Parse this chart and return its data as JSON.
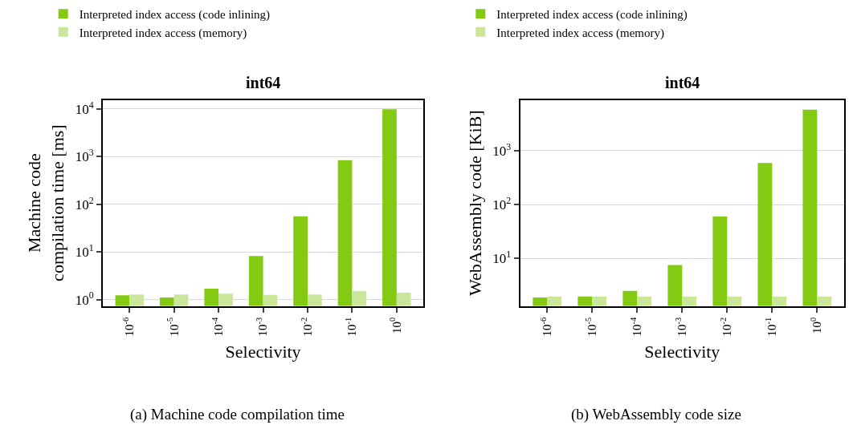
{
  "chart_data": [
    {
      "type": "bar",
      "title": "int64",
      "xlabel": "Selectivity",
      "ylabel": "Machine code compilation time [ms]",
      "categories": [
        "10$^{-6}$",
        "10$^{-5}$",
        "10$^{-4}$",
        "10$^{-3}$",
        "10$^{-2}$",
        "10$^{-1}$",
        "10$^{0}$"
      ],
      "series": [
        {
          "name": "Interpreted index access (code inlining)",
          "color": "#84c912",
          "values": [
            1.23,
            1.11,
            1.69,
            8.2,
            56,
            840,
            9800
          ]
        },
        {
          "name": "Interpreted index access (memory)",
          "color": "#c9e69a",
          "values": [
            1.28,
            1.28,
            1.33,
            1.25,
            1.28,
            1.52,
            1.39
          ]
        }
      ],
      "log": "y",
      "ylim": [
        0.73,
        15500
      ],
      "yticks": [
        {
          "value": 1,
          "label": "10$^{0}$"
        },
        {
          "value": 10,
          "label": "10$^{1}$"
        },
        {
          "value": 100,
          "label": "10$^{2}$"
        },
        {
          "value": 1000,
          "label": "10$^{3}$"
        },
        {
          "value": 10000,
          "label": "10$^{4}$"
        }
      ],
      "grid": "y",
      "legend": "top left",
      "annotations": [
        "(a) Machine code compilation time"
      ]
    },
    {
      "type": "bar",
      "title": "int64",
      "xlabel": "Selectivity",
      "ylabel": "WebAssembly code [KiB]",
      "categories": [
        "10$^{-6}$",
        "10$^{-5}$",
        "10$^{-4}$",
        "10$^{-3}$",
        "10$^{-2}$",
        "10$^{-1}$",
        "10$^{0}$"
      ],
      "series": [
        {
          "name": "Interpreted index access (code inlining)",
          "color": "#84c912",
          "values": [
            1.9,
            1.97,
            2.5,
            7.6,
            60,
            592,
            5780
          ]
        },
        {
          "name": "Interpreted index access (memory)",
          "color": "#c9e69a",
          "values": [
            1.97,
            1.97,
            1.97,
            1.97,
            1.97,
            1.97,
            1.97
          ]
        }
      ],
      "log": "y",
      "ylim": [
        1.31,
        8800
      ],
      "yticks": [
        {
          "value": 10,
          "label": "10$^{1}$"
        },
        {
          "value": 100,
          "label": "10$^{2}$"
        },
        {
          "value": 1000,
          "label": "10$^{3}$"
        }
      ],
      "grid": "y",
      "legend": "top left",
      "annotations": [
        "(b) WebAssembly code size"
      ]
    }
  ]
}
